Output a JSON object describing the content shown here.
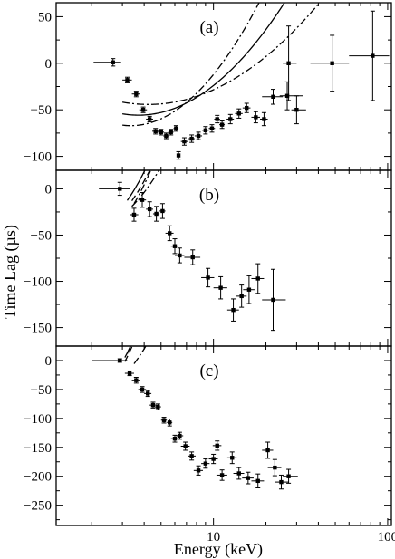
{
  "figure": {
    "ylabel": "Time Lag (µs)",
    "xlabel": "Energy (keV)",
    "x_scale": "log",
    "xlim": [
      1.25,
      105
    ],
    "x_tick_labels": [
      {
        "value": 10,
        "label": "10"
      },
      {
        "value": 100,
        "label": "100"
      }
    ]
  },
  "chart_data": [
    {
      "type": "scatter",
      "panel_label": "(a)",
      "ylim": [
        -115,
        65
      ],
      "y_ticks": [
        50,
        0,
        -50,
        -100
      ],
      "series": [
        {
          "kind": "points",
          "points": [
            {
              "x": 2.65,
              "xerr": [
                0.6,
                0.3
              ],
              "y": 1,
              "yerr": 4
            },
            {
              "x": 3.2,
              "xerr": [
                0.2,
                0.2
              ],
              "y": -18,
              "yerr": 3
            },
            {
              "x": 3.6,
              "xerr": [
                0.2,
                0.2
              ],
              "y": -33,
              "yerr": 3
            },
            {
              "x": 3.95,
              "xerr": [
                0.2,
                0.2
              ],
              "y": -50,
              "yerr": 3
            },
            {
              "x": 4.3,
              "xerr": [
                0.2,
                0.2
              ],
              "y": -60,
              "yerr": 3
            },
            {
              "x": 4.65,
              "xerr": [
                0.2,
                0.2
              ],
              "y": -73,
              "yerr": 3
            },
            {
              "x": 5.0,
              "xerr": [
                0.2,
                0.2
              ],
              "y": -74,
              "yerr": 3
            },
            {
              "x": 5.35,
              "xerr": [
                0.2,
                0.2
              ],
              "y": -78,
              "yerr": 3
            },
            {
              "x": 5.7,
              "xerr": [
                0.2,
                0.2
              ],
              "y": -74,
              "yerr": 3
            },
            {
              "x": 6.1,
              "xerr": [
                0.2,
                0.2
              ],
              "y": -70,
              "yerr": 3
            },
            {
              "x": 6.3,
              "xerr": [
                0.1,
                0.1
              ],
              "y": -99,
              "yerr": 4
            },
            {
              "x": 6.8,
              "xerr": [
                0.3,
                0.3
              ],
              "y": -84,
              "yerr": 4
            },
            {
              "x": 7.5,
              "xerr": [
                0.3,
                0.3
              ],
              "y": -81,
              "yerr": 4
            },
            {
              "x": 8.2,
              "xerr": [
                0.4,
                0.4
              ],
              "y": -78,
              "yerr": 4
            },
            {
              "x": 9.0,
              "xerr": [
                0.4,
                0.4
              ],
              "y": -72,
              "yerr": 4
            },
            {
              "x": 9.8,
              "xerr": [
                0.4,
                0.4
              ],
              "y": -70,
              "yerr": 4
            },
            {
              "x": 10.5,
              "xerr": [
                0.4,
                0.4
              ],
              "y": -60,
              "yerr": 4
            },
            {
              "x": 11.2,
              "xerr": [
                0.4,
                0.4
              ],
              "y": -66,
              "yerr": 4
            },
            {
              "x": 12.5,
              "xerr": [
                0.6,
                0.6
              ],
              "y": -60,
              "yerr": 5
            },
            {
              "x": 14.0,
              "xerr": [
                0.7,
                0.7
              ],
              "y": -54,
              "yerr": 5
            },
            {
              "x": 15.5,
              "xerr": [
                0.8,
                0.8
              ],
              "y": -48,
              "yerr": 5
            },
            {
              "x": 17.5,
              "xerr": [
                1.0,
                1.0
              ],
              "y": -58,
              "yerr": 6
            },
            {
              "x": 19.5,
              "xerr": [
                1.0,
                1.0
              ],
              "y": -60,
              "yerr": 7
            },
            {
              "x": 22.0,
              "xerr": [
                3.0,
                3.0
              ],
              "y": -36,
              "yerr": 8
            },
            {
              "x": 26.5,
              "xerr": [
                2.5,
                6.0
              ],
              "y": -35,
              "yerr": 15
            },
            {
              "x": 27.0,
              "xerr": [
                2.0,
                3.0
              ],
              "y": 0,
              "yerr": 40
            },
            {
              "x": 30.0,
              "xerr": [
                2.0,
                4.0
              ],
              "y": -50,
              "yerr": 15
            },
            {
              "x": 48.0,
              "xerr": [
                12.0,
                12.0
              ],
              "y": 0,
              "yerr": 30
            },
            {
              "x": 82.0,
              "xerr": [
                22.0,
                20.0
              ],
              "y": 8,
              "yerr": 48
            }
          ]
        },
        {
          "kind": "fit",
          "style": "solid",
          "model": {
            "a": 145,
            "b": 5.5,
            "c": 0.65
          },
          "x_range": [
            3.0,
            100
          ]
        },
        {
          "kind": "fit",
          "style": "dashdot",
          "model": {
            "a": 185,
            "b": 5.3,
            "c": 0.69
          },
          "x_range": [
            3.0,
            100
          ]
        },
        {
          "kind": "fit",
          "style": "dashdot",
          "model": {
            "a": 108,
            "b": 5.8,
            "c": 0.61
          },
          "x_range": [
            3.0,
            100
          ]
        }
      ]
    },
    {
      "type": "scatter",
      "panel_label": "(b)",
      "ylim": [
        -170,
        20
      ],
      "y_ticks": [
        0,
        -50,
        -100,
        -150
      ],
      "series": [
        {
          "kind": "points",
          "points": [
            {
              "x": 2.9,
              "xerr": [
                0.7,
                0.4
              ],
              "y": 0,
              "yerr": 7
            },
            {
              "x": 3.5,
              "xerr": [
                0.2,
                0.2
              ],
              "y": -28,
              "yerr": 7
            },
            {
              "x": 3.9,
              "xerr": [
                0.2,
                0.2
              ],
              "y": -12,
              "yerr": 8
            },
            {
              "x": 4.3,
              "xerr": [
                0.2,
                0.2
              ],
              "y": -22,
              "yerr": 8
            },
            {
              "x": 4.7,
              "xerr": [
                0.2,
                0.2
              ],
              "y": -27,
              "yerr": 8
            },
            {
              "x": 5.1,
              "xerr": [
                0.2,
                0.2
              ],
              "y": -24,
              "yerr": 8
            },
            {
              "x": 5.6,
              "xerr": [
                0.3,
                0.3
              ],
              "y": -48,
              "yerr": 8
            },
            {
              "x": 6.0,
              "xerr": [
                0.3,
                0.3
              ],
              "y": -62,
              "yerr": 8
            },
            {
              "x": 6.4,
              "xerr": [
                0.4,
                0.4
              ],
              "y": -72,
              "yerr": 8
            },
            {
              "x": 7.6,
              "xerr": [
                0.8,
                0.8
              ],
              "y": -74,
              "yerr": 8
            },
            {
              "x": 9.3,
              "xerr": [
                0.8,
                0.8
              ],
              "y": -96,
              "yerr": 10
            },
            {
              "x": 11.0,
              "xerr": [
                1.0,
                1.0
              ],
              "y": -107,
              "yerr": 12
            },
            {
              "x": 13.0,
              "xerr": [
                1.0,
                1.0
              ],
              "y": -131,
              "yerr": 12
            },
            {
              "x": 14.5,
              "xerr": [
                1.0,
                1.0
              ],
              "y": -116,
              "yerr": 12
            },
            {
              "x": 16.0,
              "xerr": [
                1.2,
                1.2
              ],
              "y": -109,
              "yerr": 15
            },
            {
              "x": 18.0,
              "xerr": [
                1.5,
                1.5
              ],
              "y": -97,
              "yerr": 16
            },
            {
              "x": 22.0,
              "xerr": [
                3.0,
                4.0
              ],
              "y": -120,
              "yerr": 33
            }
          ]
        },
        {
          "kind": "fit",
          "style": "solid",
          "model": {
            "a": 150,
            "b": 3.0,
            "c": 0.87
          },
          "x_range": [
            3.2,
            100
          ]
        },
        {
          "kind": "fit",
          "style": "dashed",
          "model": {
            "a": 163,
            "b": 3.3,
            "c": 0.9
          },
          "x_range": [
            3.4,
            100
          ]
        },
        {
          "kind": "fit",
          "style": "dashdot",
          "model": {
            "a": 133,
            "b": 3.3,
            "c": 0.84
          },
          "x_range": [
            3.4,
            100
          ]
        },
        {
          "kind": "fit",
          "style": "dashdot",
          "model": {
            "a": 198,
            "b": 3.4,
            "c": 0.9
          },
          "x_range": [
            3.5,
            100
          ]
        }
      ]
    },
    {
      "type": "scatter",
      "panel_label": "(c)",
      "ylim": [
        -285,
        25
      ],
      "y_ticks": [
        0,
        -50,
        -100,
        -150,
        -200,
        -250
      ],
      "series": [
        {
          "kind": "points",
          "points": [
            {
              "x": 2.9,
              "xerr": [
                0.9,
                0.3
              ],
              "y": 0,
              "yerr": 3
            },
            {
              "x": 3.3,
              "xerr": [
                0.2,
                0.2
              ],
              "y": -22,
              "yerr": 4
            },
            {
              "x": 3.6,
              "xerr": [
                0.2,
                0.2
              ],
              "y": -34,
              "yerr": 5
            },
            {
              "x": 3.9,
              "xerr": [
                0.2,
                0.2
              ],
              "y": -50,
              "yerr": 5
            },
            {
              "x": 4.2,
              "xerr": [
                0.2,
                0.2
              ],
              "y": -57,
              "yerr": 5
            },
            {
              "x": 4.5,
              "xerr": [
                0.2,
                0.2
              ],
              "y": -77,
              "yerr": 5
            },
            {
              "x": 4.8,
              "xerr": [
                0.2,
                0.2
              ],
              "y": -80,
              "yerr": 5
            },
            {
              "x": 5.2,
              "xerr": [
                0.2,
                0.2
              ],
              "y": -103,
              "yerr": 5
            },
            {
              "x": 5.6,
              "xerr": [
                0.2,
                0.2
              ],
              "y": -107,
              "yerr": 6
            },
            {
              "x": 6.0,
              "xerr": [
                0.3,
                0.3
              ],
              "y": -135,
              "yerr": 6
            },
            {
              "x": 6.4,
              "xerr": [
                0.3,
                0.3
              ],
              "y": -130,
              "yerr": 6
            },
            {
              "x": 6.9,
              "xerr": [
                0.4,
                0.4
              ],
              "y": -148,
              "yerr": 7
            },
            {
              "x": 7.5,
              "xerr": [
                0.4,
                0.4
              ],
              "y": -165,
              "yerr": 7
            },
            {
              "x": 8.2,
              "xerr": [
                0.5,
                0.5
              ],
              "y": -190,
              "yerr": 8
            },
            {
              "x": 9.0,
              "xerr": [
                0.5,
                0.5
              ],
              "y": -178,
              "yerr": 8
            },
            {
              "x": 10.0,
              "xerr": [
                0.6,
                0.6
              ],
              "y": -170,
              "yerr": 8
            },
            {
              "x": 10.5,
              "xerr": [
                0.6,
                0.6
              ],
              "y": -147,
              "yerr": 8
            },
            {
              "x": 11.2,
              "xerr": [
                0.8,
                0.8
              ],
              "y": -198,
              "yerr": 9
            },
            {
              "x": 12.8,
              "xerr": [
                0.8,
                0.8
              ],
              "y": -168,
              "yerr": 10
            },
            {
              "x": 14.0,
              "xerr": [
                1.0,
                1.0
              ],
              "y": -195,
              "yerr": 10
            },
            {
              "x": 15.8,
              "xerr": [
                1.2,
                1.2
              ],
              "y": -203,
              "yerr": 10
            },
            {
              "x": 18.0,
              "xerr": [
                1.5,
                1.5
              ],
              "y": -208,
              "yerr": 12
            },
            {
              "x": 20.5,
              "xerr": [
                1.5,
                1.5
              ],
              "y": -155,
              "yerr": 14
            },
            {
              "x": 22.5,
              "xerr": [
                2.0,
                2.0
              ],
              "y": -185,
              "yerr": 14
            },
            {
              "x": 24.5,
              "xerr": [
                2.0,
                2.5
              ],
              "y": -210,
              "yerr": 12
            },
            {
              "x": 27.0,
              "xerr": [
                2.0,
                3.5
              ],
              "y": -200,
              "yerr": 12
            }
          ]
        },
        {
          "kind": "fit",
          "style": "solid",
          "model": {
            "a": 250,
            "b": 2.9,
            "c": 0.96
          },
          "x_range": [
            3.1,
            28
          ]
        },
        {
          "kind": "fit",
          "style": "dashed",
          "model": {
            "a": 278,
            "b": 2.95,
            "c": 0.95
          },
          "x_range": [
            3.1,
            100
          ]
        },
        {
          "kind": "fit",
          "style": "dashdot",
          "model": {
            "a": 218,
            "b": 3.3,
            "c": 0.93
          },
          "x_range": [
            3.5,
            100
          ]
        },
        {
          "kind": "fit",
          "style": "dashdot",
          "model": {
            "a": 300,
            "b": 3.0,
            "c": 0.98
          },
          "x_range": [
            3.2,
            100
          ]
        }
      ]
    }
  ]
}
